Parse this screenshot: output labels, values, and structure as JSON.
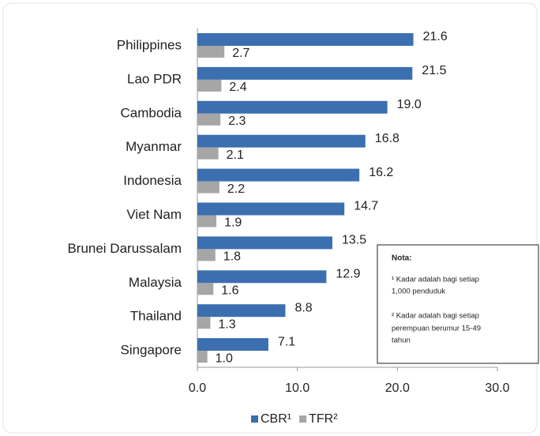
{
  "chart_data": {
    "type": "bar",
    "orientation": "horizontal",
    "categories": [
      "Philippines",
      "Lao PDR",
      "Cambodia",
      "Myanmar",
      "Indonesia",
      "Viet Nam",
      "Brunei Darussalam",
      "Malaysia",
      "Thailand",
      "Singapore"
    ],
    "series": [
      {
        "name": "CBR¹",
        "color": "#3b6fb0",
        "values": [
          21.6,
          21.5,
          19.0,
          16.8,
          16.2,
          14.7,
          13.5,
          12.9,
          8.8,
          7.1
        ],
        "value_labels": [
          "21.6",
          "21.5",
          "19.0",
          "16.8",
          "16.2",
          "14.7",
          "13.5",
          "12.9",
          "8.8",
          "7.1"
        ]
      },
      {
        "name": "TFR²",
        "color": "#a6a6a6",
        "values": [
          2.7,
          2.4,
          2.3,
          2.1,
          2.2,
          1.9,
          1.8,
          1.6,
          1.3,
          1.0
        ],
        "value_labels": [
          "2.7",
          "2.4",
          "2.3",
          "2.1",
          "2.2",
          "1.9",
          "1.8",
          "1.6",
          "1.3",
          "1.0"
        ]
      }
    ],
    "xlim": [
      0,
      30
    ],
    "xticks": [
      {
        "value": 0,
        "label": "0.0"
      },
      {
        "value": 10,
        "label": "10.0"
      },
      {
        "value": 20,
        "label": "20.0"
      },
      {
        "value": 30,
        "label": "30.0"
      }
    ],
    "legend": "bottom",
    "annotations": [
      "Nota:",
      "¹ Kadar adalah bagi setiap",
      "1,000 penduduk",
      "² Kadar adalah bagi setiap",
      "perempuan  berumur 15-49",
      "tahun"
    ]
  }
}
